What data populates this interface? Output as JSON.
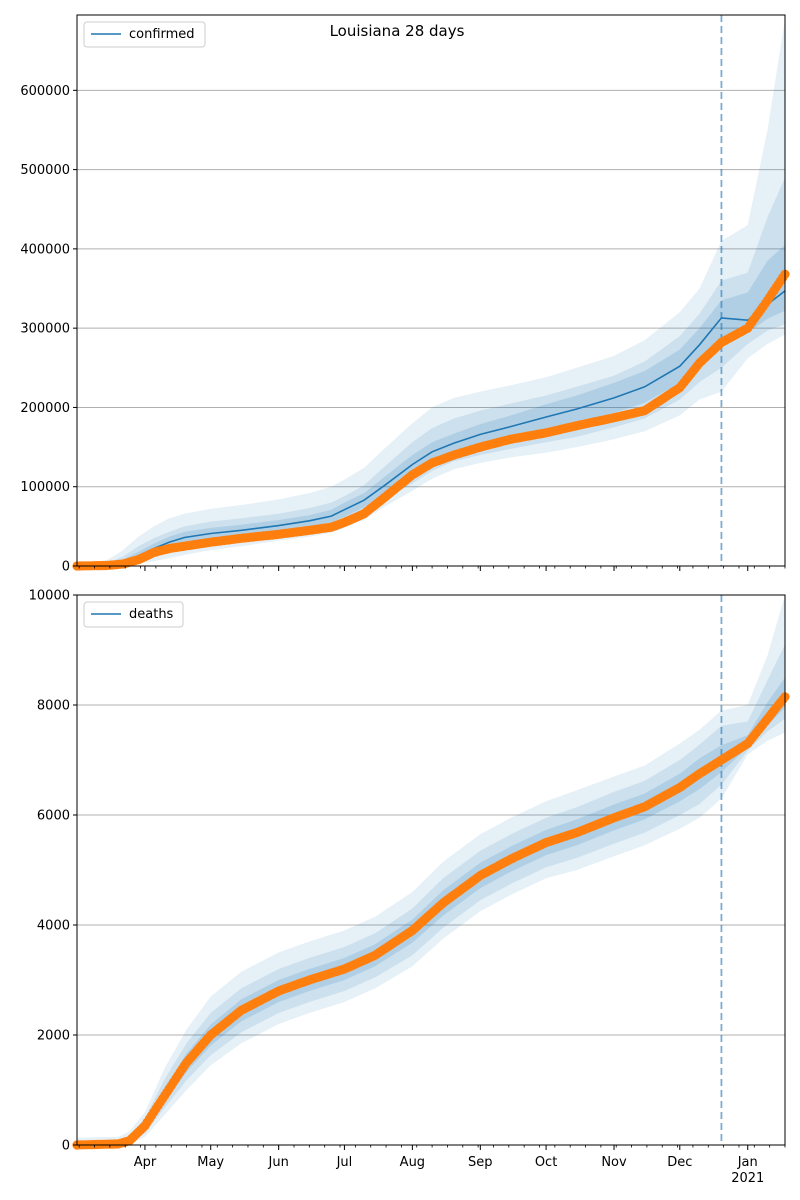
{
  "chart_data": [
    {
      "type": "line",
      "title": "Louisiana 28 days",
      "xlabel": "",
      "ylabel": "",
      "x_range": [
        "2020-03-01",
        "2021-01-18"
      ],
      "ylim": [
        0,
        695000
      ],
      "yticks": [
        0,
        100000,
        200000,
        300000,
        400000,
        500000,
        600000
      ],
      "ytick_labels": [
        "0",
        "100000",
        "200000",
        "300000",
        "400000",
        "500000",
        "600000"
      ],
      "xticks": [],
      "xtick_labels": [],
      "grid": "horizontal",
      "legend": {
        "position": "top-left",
        "entries": [
          "confirmed"
        ]
      },
      "forecast_start": "2020-12-20",
      "colors": {
        "model": "#1f77b4",
        "observed": "#ff7f0e",
        "band": "#1f77b4",
        "vline": "#1f77b4"
      },
      "series": [
        {
          "name": "confirmed",
          "role": "model",
          "x": [
            "2020-03-01",
            "2020-03-15",
            "2020-03-22",
            "2020-03-29",
            "2020-04-05",
            "2020-04-12",
            "2020-04-19",
            "2020-05-01",
            "2020-05-15",
            "2020-06-01",
            "2020-06-15",
            "2020-06-25",
            "2020-07-01",
            "2020-07-10",
            "2020-07-20",
            "2020-08-01",
            "2020-08-10",
            "2020-08-20",
            "2020-09-01",
            "2020-09-15",
            "2020-10-01",
            "2020-10-15",
            "2020-11-01",
            "2020-11-15",
            "2020-12-01",
            "2020-12-10",
            "2020-12-20",
            "2021-01-01",
            "2021-01-10",
            "2021-01-18"
          ],
          "values": [
            0,
            1000,
            5000,
            13000,
            22000,
            30000,
            36000,
            41000,
            45000,
            51000,
            57000,
            63000,
            71000,
            83000,
            103000,
            128000,
            144000,
            155000,
            166000,
            176000,
            188000,
            198000,
            212000,
            226000,
            252000,
            279000,
            313000,
            310000,
            330000,
            347000
          ]
        },
        {
          "name": "",
          "role": "observed",
          "x": [
            "2020-03-01",
            "2020-03-15",
            "2020-03-22",
            "2020-03-29",
            "2020-04-05",
            "2020-04-12",
            "2020-04-19",
            "2020-05-01",
            "2020-05-15",
            "2020-06-01",
            "2020-06-15",
            "2020-06-25",
            "2020-07-01",
            "2020-07-10",
            "2020-07-20",
            "2020-08-01",
            "2020-08-10",
            "2020-08-20",
            "2020-09-01",
            "2020-09-15",
            "2020-10-01",
            "2020-10-15",
            "2020-11-01",
            "2020-11-15",
            "2020-12-01",
            "2020-12-10",
            "2020-12-20",
            "2021-01-01",
            "2021-01-10",
            "2021-01-18"
          ],
          "values": [
            0,
            700,
            2500,
            8000,
            17000,
            22000,
            25000,
            30000,
            35000,
            40000,
            45000,
            49000,
            55000,
            66000,
            88000,
            115000,
            130000,
            140000,
            150000,
            160000,
            168000,
            177000,
            187000,
            196000,
            225000,
            256000,
            282000,
            300000,
            335000,
            368000
          ]
        }
      ],
      "bands": [
        {
          "level": "outer",
          "lower": [
            0,
            0,
            1000,
            3000,
            6000,
            10000,
            14000,
            20000,
            25000,
            32000,
            37000,
            42000,
            48000,
            58000,
            76000,
            95000,
            110000,
            122000,
            130000,
            137000,
            143000,
            150000,
            160000,
            170000,
            190000,
            210000,
            220000,
            262000,
            280000,
            292000
          ],
          "upper": [
            0,
            8000,
            20000,
            37000,
            50000,
            60000,
            66000,
            72000,
            77000,
            84000,
            92000,
            100000,
            109000,
            124000,
            150000,
            180000,
            200000,
            212000,
            220000,
            228000,
            238000,
            250000,
            265000,
            285000,
            320000,
            350000,
            410000,
            430000,
            550000,
            690000
          ]
        },
        {
          "level": "middle",
          "lower": [
            0,
            200,
            2000,
            6000,
            11000,
            17000,
            22000,
            27000,
            32000,
            38000,
            43000,
            48000,
            55000,
            65000,
            84000,
            104000,
            120000,
            132000,
            140000,
            148000,
            156000,
            163000,
            175000,
            186000,
            210000,
            232000,
            250000,
            280000,
            297000,
            305000
          ],
          "upper": [
            0,
            4000,
            12000,
            25000,
            35000,
            43000,
            50000,
            56000,
            60000,
            66000,
            73000,
            80000,
            88000,
            102000,
            127000,
            156000,
            174000,
            186000,
            196000,
            205000,
            215000,
            226000,
            240000,
            258000,
            290000,
            318000,
            360000,
            370000,
            440000,
            490000
          ]
        },
        {
          "level": "inner",
          "lower": [
            0,
            500,
            3000,
            9000,
            16000,
            23000,
            29000,
            34000,
            38000,
            44000,
            50000,
            55000,
            62000,
            74000,
            93000,
            116000,
            132000,
            143000,
            153000,
            162000,
            172000,
            181000,
            193000,
            206000,
            231000,
            256000,
            280000,
            294000,
            312000,
            322000
          ],
          "upper": [
            0,
            2000,
            8000,
            18000,
            28000,
            37000,
            43000,
            48000,
            52000,
            58000,
            64000,
            71000,
            80000,
            92000,
            114000,
            140000,
            156000,
            167000,
            179000,
            190000,
            204000,
            215000,
            231000,
            246000,
            273000,
            300000,
            335000,
            345000,
            385000,
            405000
          ]
        }
      ]
    },
    {
      "type": "line",
      "title": "",
      "xlabel": "",
      "ylabel": "",
      "x_range": [
        "2020-03-01",
        "2021-01-18"
      ],
      "ylim": [
        0,
        10000
      ],
      "yticks": [
        0,
        2000,
        4000,
        6000,
        8000,
        10000
      ],
      "ytick_labels": [
        "0",
        "2000",
        "4000",
        "6000",
        "8000",
        "10000"
      ],
      "xticks": [
        "2020-04-01",
        "2020-05-01",
        "2020-06-01",
        "2020-07-01",
        "2020-08-01",
        "2020-09-01",
        "2020-10-01",
        "2020-11-01",
        "2020-12-01",
        "2021-01-01"
      ],
      "xtick_labels": [
        "Apr",
        "May",
        "Jun",
        "Jul",
        "Aug",
        "Sep",
        "Oct",
        "Nov",
        "Dec",
        "Jan\n2021"
      ],
      "grid": "horizontal",
      "legend": {
        "position": "top-left",
        "entries": [
          "deaths"
        ]
      },
      "forecast_start": "2020-12-20",
      "colors": {
        "model": "#1f77b4",
        "observed": "#ff7f0e",
        "band": "#1f77b4",
        "vline": "#1f77b4"
      },
      "series": [
        {
          "name": "deaths",
          "role": "model",
          "x": [
            "2020-03-01",
            "2020-03-20",
            "2020-03-25",
            "2020-04-01",
            "2020-04-10",
            "2020-04-20",
            "2020-05-01",
            "2020-05-15",
            "2020-06-01",
            "2020-06-15",
            "2020-07-01",
            "2020-07-15",
            "2020-08-01",
            "2020-08-15",
            "2020-09-01",
            "2020-09-15",
            "2020-10-01",
            "2020-10-15",
            "2020-11-01",
            "2020-11-15",
            "2020-12-01",
            "2020-12-10",
            "2020-12-20",
            "2021-01-01",
            "2021-01-10",
            "2021-01-18"
          ],
          "values": [
            0,
            20,
            80,
            350,
            900,
            1500,
            2000,
            2450,
            2800,
            3000,
            3200,
            3450,
            3900,
            4400,
            4900,
            5200,
            5500,
            5680,
            5950,
            6150,
            6500,
            6750,
            7000,
            7300,
            7750,
            8150
          ]
        },
        {
          "name": "",
          "role": "observed",
          "x": [
            "2020-03-01",
            "2020-03-20",
            "2020-03-25",
            "2020-04-01",
            "2020-04-10",
            "2020-04-20",
            "2020-05-01",
            "2020-05-15",
            "2020-06-01",
            "2020-06-15",
            "2020-07-01",
            "2020-07-15",
            "2020-08-01",
            "2020-08-15",
            "2020-09-01",
            "2020-09-15",
            "2020-10-01",
            "2020-10-15",
            "2020-11-01",
            "2020-11-15",
            "2020-12-01",
            "2020-12-10",
            "2020-12-20",
            "2021-01-01",
            "2021-01-10",
            "2021-01-18"
          ],
          "values": [
            0,
            20,
            80,
            350,
            900,
            1500,
            2000,
            2450,
            2800,
            3000,
            3200,
            3450,
            3900,
            4400,
            4900,
            5200,
            5500,
            5680,
            5950,
            6150,
            6500,
            6750,
            7000,
            7300,
            7750,
            8150
          ]
        }
      ],
      "bands": [
        {
          "level": "outer",
          "lower": [
            0,
            0,
            10,
            150,
            550,
            1000,
            1450,
            1850,
            2200,
            2400,
            2600,
            2850,
            3250,
            3750,
            4250,
            4550,
            4850,
            5000,
            5250,
            5450,
            5750,
            5950,
            6300,
            7100,
            7350,
            7500
          ],
          "upper": [
            130,
            150,
            250,
            600,
            1400,
            2100,
            2700,
            3150,
            3500,
            3700,
            3900,
            4150,
            4600,
            5150,
            5650,
            5950,
            6250,
            6450,
            6700,
            6900,
            7300,
            7550,
            7900,
            8000,
            8900,
            10000
          ]
        },
        {
          "level": "middle",
          "lower": [
            0,
            5,
            30,
            220,
            680,
            1180,
            1630,
            2050,
            2400,
            2600,
            2800,
            3050,
            3450,
            3950,
            4450,
            4750,
            5050,
            5220,
            5480,
            5680,
            6000,
            6200,
            6550,
            7170,
            7520,
            7750
          ],
          "upper": [
            80,
            90,
            170,
            490,
            1200,
            1850,
            2400,
            2850,
            3200,
            3400,
            3600,
            3850,
            4300,
            4850,
            5350,
            5650,
            5950,
            6140,
            6420,
            6620,
            7000,
            7280,
            7620,
            7700,
            8450,
            9100
          ]
        },
        {
          "level": "inner",
          "lower": [
            0,
            10,
            50,
            280,
            790,
            1330,
            1810,
            2250,
            2600,
            2800,
            3000,
            3250,
            3680,
            4170,
            4670,
            4970,
            5270,
            5450,
            5720,
            5920,
            6250,
            6470,
            6780,
            7230,
            7630,
            7950
          ],
          "upper": [
            40,
            50,
            120,
            420,
            1030,
            1670,
            2190,
            2650,
            3000,
            3200,
            3400,
            3650,
            4100,
            4630,
            5130,
            5430,
            5730,
            5920,
            6190,
            6390,
            6750,
            7030,
            7270,
            7450,
            8050,
            8500
          ]
        }
      ]
    }
  ]
}
